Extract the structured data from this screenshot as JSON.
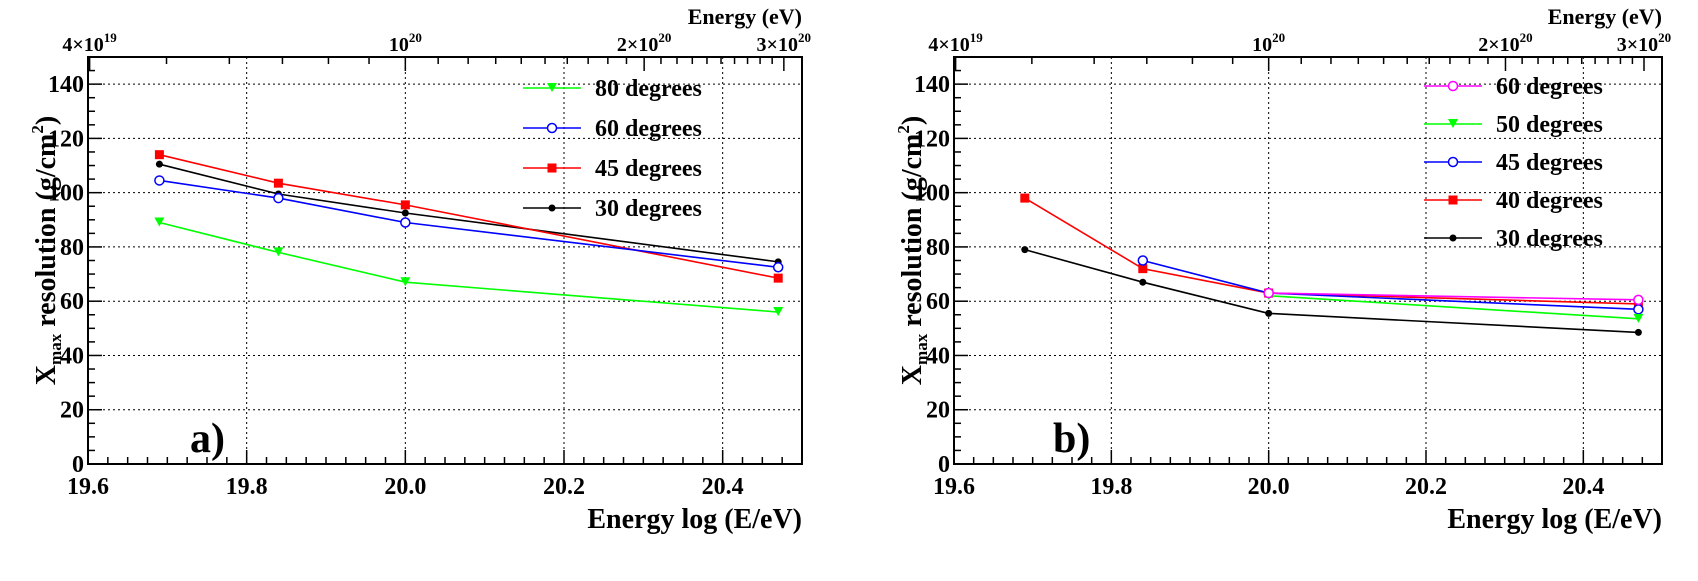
{
  "chart_data": [
    {
      "type": "line",
      "panel_label": "a)",
      "xlabel": "Energy log (E/eV)",
      "ylabel_main": "X",
      "ylabel_sub": "max",
      "ylabel_rest": " resolution (g/cm",
      "ylabel_sup": "2",
      "ylabel_end": ")",
      "top_axis_label": "Energy (eV)",
      "xlim": [
        19.6,
        20.5
      ],
      "ylim": [
        0,
        150
      ],
      "grid": true,
      "legend_position": "top-right",
      "x_ticks": [
        "19.6",
        "19.8",
        "20.0",
        "20.2",
        "20.4"
      ],
      "x_tick_values": [
        19.6,
        19.8,
        20.0,
        20.2,
        20.4
      ],
      "y_ticks": [
        "0",
        "20",
        "40",
        "60",
        "80",
        "100",
        "120",
        "140"
      ],
      "y_tick_values": [
        0,
        20,
        40,
        60,
        80,
        100,
        120,
        140
      ],
      "top_ticks": [
        {
          "base": "4×10",
          "exp": "19",
          "logE": 19.602
        },
        {
          "base": "10",
          "exp": "20",
          "logE": 20.0
        },
        {
          "base": "2×10",
          "exp": "20",
          "logE": 20.301
        },
        {
          "base": "3×10",
          "exp": "20",
          "logE": 20.477
        }
      ],
      "series": [
        {
          "name": "80 degrees",
          "color": "#00ff00",
          "marker": "triangle-down",
          "x": [
            19.69,
            19.84,
            20.0,
            20.47
          ],
          "y": [
            89,
            78,
            67,
            56
          ]
        },
        {
          "name": "60 degrees",
          "color": "#0000ff",
          "marker": "open-circle",
          "x": [
            19.69,
            19.84,
            20.0,
            20.47
          ],
          "y": [
            104.5,
            98,
            89,
            72.5
          ]
        },
        {
          "name": "45 degrees",
          "color": "#ff0000",
          "marker": "square",
          "x": [
            19.69,
            19.84,
            20.0,
            20.47
          ],
          "y": [
            114,
            103.5,
            95.5,
            68.5
          ]
        },
        {
          "name": "30 degrees",
          "color": "#000000",
          "marker": "dot",
          "x": [
            19.69,
            19.84,
            20.0,
            20.47
          ],
          "y": [
            110.5,
            99.5,
            92.5,
            74.5
          ]
        }
      ]
    },
    {
      "type": "line",
      "panel_label": "b)",
      "xlabel": "Energy log (E/eV)",
      "ylabel_main": "X",
      "ylabel_sub": "max",
      "ylabel_rest": " resolution (g/cm",
      "ylabel_sup": "2",
      "ylabel_end": ")",
      "top_axis_label": "Energy (eV)",
      "xlim": [
        19.6,
        20.5
      ],
      "ylim": [
        0,
        150
      ],
      "grid": true,
      "legend_position": "top-right",
      "x_ticks": [
        "19.6",
        "19.8",
        "20.0",
        "20.2",
        "20.4"
      ],
      "x_tick_values": [
        19.6,
        19.8,
        20.0,
        20.2,
        20.4
      ],
      "y_ticks": [
        "0",
        "20",
        "40",
        "60",
        "80",
        "100",
        "120",
        "140"
      ],
      "y_tick_values": [
        0,
        20,
        40,
        60,
        80,
        100,
        120,
        140
      ],
      "top_ticks": [
        {
          "base": "4×10",
          "exp": "19",
          "logE": 19.602
        },
        {
          "base": "10",
          "exp": "20",
          "logE": 20.0
        },
        {
          "base": "2×10",
          "exp": "20",
          "logE": 20.301
        },
        {
          "base": "3×10",
          "exp": "20",
          "logE": 20.477
        }
      ],
      "series": [
        {
          "name": "60 degrees",
          "color": "#ff00ff",
          "marker": "open-circle",
          "x": [
            20.0,
            20.47
          ],
          "y": [
            63,
            60.5
          ]
        },
        {
          "name": "50 degrees",
          "color": "#00ff00",
          "marker": "triangle-down",
          "x": [
            20.0,
            20.47
          ],
          "y": [
            62,
            53.5
          ]
        },
        {
          "name": "45 degrees",
          "color": "#0000ff",
          "marker": "open-circle",
          "x": [
            19.84,
            20.0,
            20.47
          ],
          "y": [
            75,
            63,
            57
          ]
        },
        {
          "name": "40 degrees",
          "color": "#ff0000",
          "marker": "square",
          "x": [
            19.69,
            19.84,
            20.0,
            20.47
          ],
          "y": [
            98,
            72,
            63,
            59
          ]
        },
        {
          "name": "30 degrees",
          "color": "#000000",
          "marker": "dot",
          "x": [
            19.69,
            19.84,
            20.0,
            20.47
          ],
          "y": [
            79,
            67,
            55.5,
            48.5
          ]
        }
      ]
    }
  ]
}
